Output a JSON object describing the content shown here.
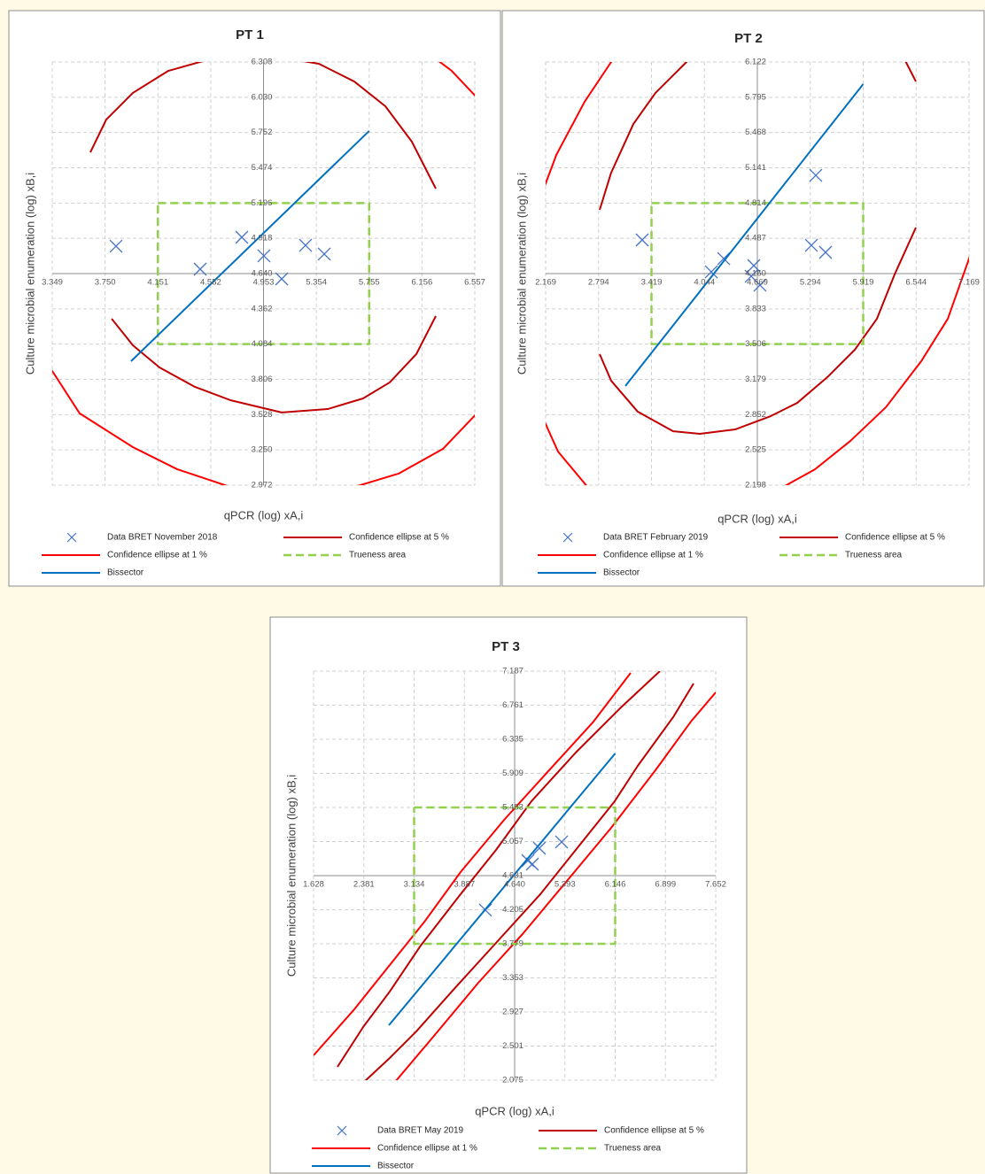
{
  "chart_data": [
    {
      "type": "scatter",
      "title": "PT 1",
      "xlabel": "qPCR (log) xA,i",
      "ylabel": "Culture microbial enumeration (log) xB,i",
      "xlim": [
        3.349,
        6.557
      ],
      "ylim": [
        2.972,
        6.308
      ],
      "xticks": [
        3.349,
        {
          "value": 3.75,
          "label": "3.750"
        },
        4.151,
        4.552,
        4.953,
        5.354,
        5.755,
        6.156,
        6.557
      ],
      "yticks": [
        2.972,
        {
          "value": 3.25,
          "label": "3.250"
        },
        3.528,
        3.806,
        4.084,
        4.362,
        {
          "value": 4.64,
          "label": "4.640"
        },
        4.918,
        5.196,
        5.474,
        5.752,
        {
          "value": 6.03,
          "label": "6.030"
        },
        6.308
      ],
      "grid": true,
      "legend": "bottom",
      "series": [
        {
          "name": "Data BRET November 2018",
          "style": "marker",
          "color": "#4472c4",
          "x": [
            3.833,
            4.472,
            4.788,
            4.956,
            5.091,
            5.272,
            5.414
          ],
          "values": [
            4.856,
            4.675,
            4.926,
            4.78,
            4.598,
            4.863,
            4.794
          ]
        },
        {
          "name": "Confidence ellipse at 5 %",
          "style": "line",
          "color": "#c00000",
          "x": [
            3.638,
            3.759,
            3.961,
            4.23,
            4.566,
            4.97,
            5.373,
            5.642,
            5.878,
            6.079,
            6.261,
            null,
            3.8,
            3.961,
            4.163,
            4.432,
            4.701,
            5.091,
            5.44,
            5.709,
            5.911,
            6.113,
            6.261
          ],
          "values": [
            5.596,
            5.854,
            6.064,
            6.238,
            6.336,
            6.364,
            6.294,
            6.154,
            5.959,
            5.68,
            5.31,
            null,
            4.284,
            4.075,
            3.9,
            3.747,
            3.642,
            3.545,
            3.572,
            3.656,
            3.782,
            4.005,
            4.305
          ]
        },
        {
          "name": "Confidence ellipse at 1 %",
          "style": "line",
          "color": "#ff0000",
          "x": [
            6.113,
            6.382,
            6.584,
            null,
            3.288,
            3.557,
            3.961,
            4.297,
            4.701,
            5.171,
            5.642,
            5.978,
            6.315,
            6.617
          ],
          "values": [
            6.448,
            6.238,
            6.015,
            null,
            3.97,
            3.538,
            3.272,
            3.098,
            2.958,
            2.875,
            2.958,
            3.063,
            3.258,
            3.586
          ]
        },
        {
          "name": "Trueness area",
          "style": "dashed",
          "color": "#92d050",
          "x": [
            4.151,
            5.755,
            5.755,
            4.151,
            4.151
          ],
          "values": [
            5.196,
            5.196,
            4.084,
            4.084,
            5.196
          ]
        },
        {
          "name": "Bissector",
          "style": "line",
          "color": "#0070c0",
          "x": [
            3.947,
            5.755
          ],
          "values": [
            3.949,
            5.764
          ]
        }
      ]
    },
    {
      "type": "scatter",
      "title": "PT 2",
      "xlabel": "qPCR (log) xA,i",
      "ylabel": "Culture microbial enumeration (log) xB,i",
      "xlim": [
        2.169,
        7.169
      ],
      "ylim": [
        2.198,
        6.122
      ],
      "xticks": [
        2.169,
        2.794,
        3.419,
        4.044,
        4.669,
        5.294,
        5.919,
        6.544,
        7.169
      ],
      "yticks": [
        2.198,
        2.525,
        2.852,
        3.179,
        3.506,
        3.833,
        {
          "value": 4.16,
          "label": "4.160"
        },
        4.487,
        4.814,
        5.141,
        5.468,
        5.795,
        6.122
      ],
      "grid": true,
      "legend": "bottom",
      "series": [
        {
          "name": "Data BRET February 2019",
          "style": "marker",
          "color": "#4472c4",
          "x": [
            3.309,
            4.125,
            4.272,
            4.596,
            4.627,
            4.7,
            5.307,
            5.359,
            5.474
          ],
          "values": [
            4.472,
            4.176,
            4.299,
            4.135,
            4.234,
            4.053,
            4.422,
            5.071,
            4.357
          ]
        },
        {
          "name": "Confidence ellipse at 5 %",
          "style": "line",
          "color": "#c00000",
          "x": [
            2.807,
            2.943,
            3.205,
            3.466,
            3.78,
            3.989,
            null,
            6.343,
            6.541,
            null,
            2.807,
            2.943,
            3.257,
            3.675,
            3.989,
            4.407,
            4.826,
            5.14,
            5.506,
            5.82,
            6.081,
            6.29,
            6.541
          ],
          "values": [
            4.751,
            5.096,
            5.547,
            5.835,
            6.081,
            6.245,
            null,
            6.245,
            5.941,
            null,
            3.413,
            3.166,
            2.879,
            2.698,
            2.674,
            2.715,
            2.838,
            2.961,
            3.207,
            3.454,
            3.741,
            4.152,
            4.587
          ]
        },
        {
          "name": "Confidence ellipse at 1 %",
          "style": "line",
          "color": "#ff0000",
          "x": [
            2.127,
            2.295,
            2.629,
            2.943,
            3.048,
            null,
            2.127,
            2.315,
            2.682,
            null,
            4.878,
            5.349,
            5.767,
            6.186,
            6.604,
            6.918,
            7.232
          ],
          "values": [
            4.907,
            5.26,
            5.753,
            6.122,
            6.245,
            null,
            2.838,
            2.51,
            2.165,
            null,
            2.14,
            2.345,
            2.608,
            2.92,
            3.347,
            3.741,
            4.439
          ]
        },
        {
          "name": "Trueness area",
          "style": "dashed",
          "color": "#92d050",
          "x": [
            3.419,
            5.919,
            5.919,
            3.419,
            3.419
          ],
          "values": [
            4.814,
            4.814,
            3.506,
            3.506,
            4.814
          ]
        },
        {
          "name": "Bissector",
          "style": "line",
          "color": "#0070c0",
          "x": [
            3.11,
            5.919
          ],
          "values": [
            3.117,
            5.917
          ]
        }
      ]
    },
    {
      "type": "scatter",
      "title": "PT 3",
      "xlabel": "qPCR (log) xA,i",
      "ylabel": "Culture microbial enumeration (log) xB,i",
      "xlim": [
        1.628,
        7.652
      ],
      "ylim": [
        2.075,
        7.187
      ],
      "xticks": [
        1.628,
        2.381,
        3.134,
        3.887,
        {
          "value": 4.64,
          "label": "4.640"
        },
        5.393,
        6.146,
        6.899,
        7.652
      ],
      "yticks": [
        2.075,
        2.501,
        2.927,
        3.353,
        3.779,
        4.205,
        4.631,
        5.057,
        5.483,
        5.909,
        6.335,
        6.761,
        7.187
      ],
      "grid": true,
      "legend": "bottom",
      "series": [
        {
          "name": "Data BRET May 2019",
          "style": "marker",
          "color": "#4472c4",
          "x": [
            4.202,
            4.839,
            4.905,
            5.011,
            5.343
          ],
          "values": [
            4.2,
            4.819,
            4.775,
            4.974,
            5.052
          ]
        },
        {
          "name": "Confidence ellipse at 5 %",
          "style": "line",
          "color": "#c00000",
          "x": [
            1.986,
            2.371,
            2.769,
            3.233,
            3.83,
            4.361,
            4.892,
            5.555,
            6.219,
            6.816,
            null,
            2.384,
            2.769,
            3.167,
            3.698,
            4.361,
            5.025,
            5.555,
            6.139,
            6.484,
            7.015,
            7.32
          ],
          "values": [
            2.241,
            2.739,
            3.182,
            3.757,
            4.399,
            4.952,
            5.561,
            6.169,
            6.722,
            7.187,
            null,
            2.053,
            2.352,
            2.684,
            3.182,
            3.79,
            4.399,
            4.952,
            5.561,
            6.003,
            6.612,
            7.032
          ]
        },
        {
          "name": "Confidence ellipse at 1 %",
          "style": "line",
          "color": "#ff0000",
          "x": [
            1.628,
            2.238,
            2.769,
            3.3,
            3.83,
            4.494,
            5.157,
            5.821,
            6.378,
            null,
            2.849,
            3.432,
            4.096,
            4.759,
            5.423,
            6.086,
            6.749,
            7.28,
            7.652
          ],
          "values": [
            2.385,
            2.96,
            3.514,
            4.067,
            4.675,
            5.339,
            5.948,
            6.556,
            7.165,
            null,
            2.053,
            2.628,
            3.292,
            3.901,
            4.565,
            5.229,
            5.948,
            6.556,
            6.921
          ]
        },
        {
          "name": "Trueness area",
          "style": "dashed",
          "color": "#92d050",
          "x": [
            3.134,
            6.146,
            6.146,
            3.134,
            3.134
          ],
          "values": [
            5.483,
            5.483,
            3.779,
            3.779,
            5.483
          ]
        },
        {
          "name": "Bissector",
          "style": "line",
          "color": "#0070c0",
          "x": [
            2.756,
            6.146
          ],
          "values": [
            2.761,
            6.158
          ]
        }
      ]
    }
  ]
}
